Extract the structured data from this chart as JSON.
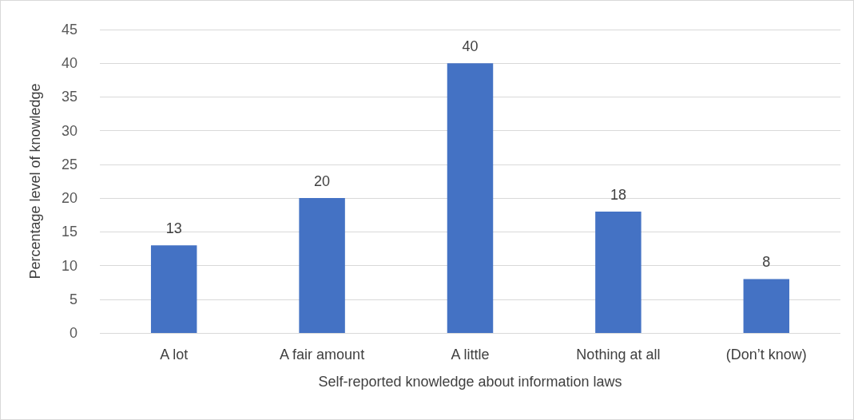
{
  "chart_data": {
    "type": "bar",
    "xlabel": "Self-reported knowledge about information laws",
    "ylabel": "Percentage level of knowledge",
    "categories": [
      "A lot",
      "A fair amount",
      "A little",
      "Nothing at all",
      "(Don’t know)"
    ],
    "values": [
      13,
      20,
      40,
      18,
      8
    ],
    "color": "#4472c4",
    "ylim": [
      0,
      45
    ],
    "yticks": [
      0,
      5,
      10,
      15,
      20,
      25,
      30,
      35,
      40,
      45
    ],
    "grid": "y",
    "data_labels": true
  }
}
